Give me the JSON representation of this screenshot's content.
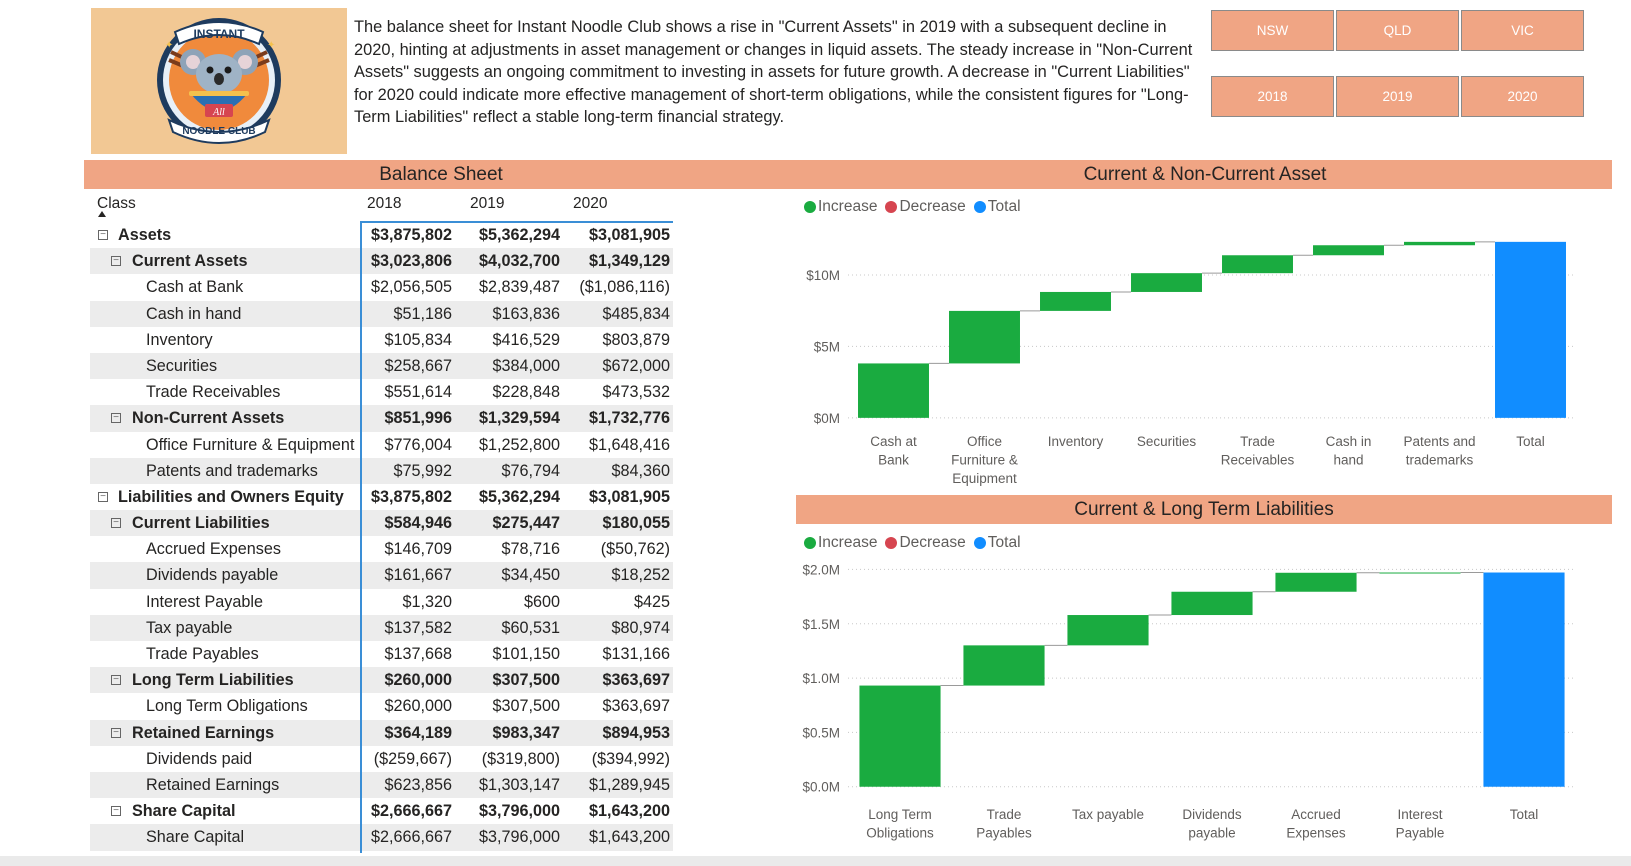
{
  "logo": {
    "top_text": "INSTANT",
    "bottom_text": "NOODLE CLUB",
    "mid_text": "All"
  },
  "summary": "The balance sheet for Instant Noodle Club shows a rise in \"Current Assets\" in 2019 with a subsequent decline in 2020, hinting at adjustments in asset management or changes in liquid assets. The steady increase in \"Non-Current Assets\" suggests an ongoing commitment to investing in assets for future growth. A decrease in \"Current Liabilities\" for 2020 could indicate more effective management of short-term obligations, while the consistent figures for \"Long-Term Liabilities\" reflect a stable long-term financial strategy.",
  "slicers": {
    "states": [
      "NSW",
      "QLD",
      "VIC"
    ],
    "years": [
      "2018",
      "2019",
      "2020"
    ]
  },
  "balance_sheet": {
    "title": "Balance Sheet",
    "col_class": "Class",
    "years": [
      "2018",
      "2019",
      "2020"
    ],
    "rows": [
      {
        "level": 0,
        "exp": true,
        "bold": true,
        "label": "Assets",
        "v": [
          "$3,875,802",
          "$5,362,294",
          "$3,081,905"
        ]
      },
      {
        "level": 1,
        "exp": true,
        "bold": true,
        "label": "Current Assets",
        "v": [
          "$3,023,806",
          "$4,032,700",
          "$1,349,129"
        ]
      },
      {
        "level": 2,
        "exp": false,
        "bold": false,
        "label": "Cash at Bank",
        "v": [
          "$2,056,505",
          "$2,839,487",
          "($1,086,116)"
        ]
      },
      {
        "level": 2,
        "exp": false,
        "bold": false,
        "label": "Cash in hand",
        "v": [
          "$51,186",
          "$163,836",
          "$485,834"
        ]
      },
      {
        "level": 2,
        "exp": false,
        "bold": false,
        "label": "Inventory",
        "v": [
          "$105,834",
          "$416,529",
          "$803,879"
        ]
      },
      {
        "level": 2,
        "exp": false,
        "bold": false,
        "label": "Securities",
        "v": [
          "$258,667",
          "$384,000",
          "$672,000"
        ]
      },
      {
        "level": 2,
        "exp": false,
        "bold": false,
        "label": "Trade Receivables",
        "v": [
          "$551,614",
          "$228,848",
          "$473,532"
        ]
      },
      {
        "level": 1,
        "exp": true,
        "bold": true,
        "label": "Non-Current Assets",
        "v": [
          "$851,996",
          "$1,329,594",
          "$1,732,776"
        ]
      },
      {
        "level": 2,
        "exp": false,
        "bold": false,
        "label": "Office Furniture & Equipment",
        "v": [
          "$776,004",
          "$1,252,800",
          "$1,648,416"
        ]
      },
      {
        "level": 2,
        "exp": false,
        "bold": false,
        "label": "Patents and trademarks",
        "v": [
          "$75,992",
          "$76,794",
          "$84,360"
        ]
      },
      {
        "level": 0,
        "exp": true,
        "bold": true,
        "label": "Liabilities and Owners Equity",
        "v": [
          "$3,875,802",
          "$5,362,294",
          "$3,081,905"
        ]
      },
      {
        "level": 1,
        "exp": true,
        "bold": true,
        "label": "Current Liabilities",
        "v": [
          "$584,946",
          "$275,447",
          "$180,055"
        ]
      },
      {
        "level": 2,
        "exp": false,
        "bold": false,
        "label": "Accrued Expenses",
        "v": [
          "$146,709",
          "$78,716",
          "($50,762)"
        ]
      },
      {
        "level": 2,
        "exp": false,
        "bold": false,
        "label": "Dividends payable",
        "v": [
          "$161,667",
          "$34,450",
          "$18,252"
        ]
      },
      {
        "level": 2,
        "exp": false,
        "bold": false,
        "label": "Interest Payable",
        "v": [
          "$1,320",
          "$600",
          "$425"
        ]
      },
      {
        "level": 2,
        "exp": false,
        "bold": false,
        "label": "Tax payable",
        "v": [
          "$137,582",
          "$60,531",
          "$80,974"
        ]
      },
      {
        "level": 2,
        "exp": false,
        "bold": false,
        "label": "Trade Payables",
        "v": [
          "$137,668",
          "$101,150",
          "$131,166"
        ]
      },
      {
        "level": 1,
        "exp": true,
        "bold": true,
        "label": "Long Term Liabilities",
        "v": [
          "$260,000",
          "$307,500",
          "$363,697"
        ]
      },
      {
        "level": 2,
        "exp": false,
        "bold": false,
        "label": "Long Term Obligations",
        "v": [
          "$260,000",
          "$307,500",
          "$363,697"
        ]
      },
      {
        "level": 1,
        "exp": true,
        "bold": true,
        "label": "Retained Earnings",
        "v": [
          "$364,189",
          "$983,347",
          "$894,953"
        ]
      },
      {
        "level": 2,
        "exp": false,
        "bold": false,
        "label": "Dividends paid",
        "v": [
          "($259,667)",
          "($319,800)",
          "($394,992)"
        ]
      },
      {
        "level": 2,
        "exp": false,
        "bold": false,
        "label": "Retained Earnings",
        "v": [
          "$623,856",
          "$1,303,147",
          "$1,289,945"
        ]
      },
      {
        "level": 1,
        "exp": true,
        "bold": true,
        "label": "Share Capital",
        "v": [
          "$2,666,667",
          "$3,796,000",
          "$1,643,200"
        ]
      },
      {
        "level": 2,
        "exp": false,
        "bold": false,
        "label": "Share Capital",
        "v": [
          "$2,666,667",
          "$3,796,000",
          "$1,643,200"
        ]
      }
    ]
  },
  "legend": {
    "increase": "Increase",
    "decrease": "Decrease",
    "total": "Total"
  },
  "colors": {
    "increase": "#1aab40",
    "decrease": "#d64550",
    "total": "#118dff",
    "header": "#f0a584",
    "accent": "#3a8ed6"
  },
  "chart_data": [
    {
      "type": "waterfall",
      "title": "Current & Non-Current Asset",
      "categories": [
        [
          "Cash at",
          "Bank"
        ],
        [
          "Office",
          "Furniture &",
          "Equipment"
        ],
        [
          "Inventory"
        ],
        [
          "Securities"
        ],
        [
          "Trade",
          "Receivables"
        ],
        [
          "Cash in",
          "hand"
        ],
        [
          "Patents and",
          "trademarks"
        ],
        [
          "Total"
        ]
      ],
      "values": [
        3809876,
        3677220,
        1326242,
        1314667,
        1253994,
        700856,
        237146,
        12320001
      ],
      "kinds": [
        "increase",
        "increase",
        "increase",
        "increase",
        "increase",
        "increase",
        "increase",
        "total"
      ],
      "yticks": [
        0,
        5000000,
        10000000
      ],
      "ytick_labels": [
        "$0M",
        "$5M",
        "$10M"
      ],
      "ylim": [
        -500000,
        13500000
      ]
    },
    {
      "type": "waterfall",
      "title": "Current & Long Term Liabilities",
      "categories": [
        [
          "Long Term",
          "Obligations"
        ],
        [
          "Trade",
          "Payables"
        ],
        [
          "Tax payable"
        ],
        [
          "Dividends",
          "payable"
        ],
        [
          "Accrued",
          "Expenses"
        ],
        [
          "Interest",
          "Payable"
        ],
        [
          "Total"
        ]
      ],
      "values": [
        931197,
        369984,
        279087,
        214369,
        174663,
        2345,
        1971645
      ],
      "kinds": [
        "increase",
        "increase",
        "increase",
        "increase",
        "increase",
        "increase",
        "total"
      ],
      "yticks": [
        0,
        500000,
        1000000,
        1500000,
        2000000
      ],
      "ytick_labels": [
        "$0.0M",
        "$0.5M",
        "$1.0M",
        "$1.5M",
        "$2.0M"
      ],
      "ylim": [
        -30000,
        2050000
      ]
    }
  ]
}
